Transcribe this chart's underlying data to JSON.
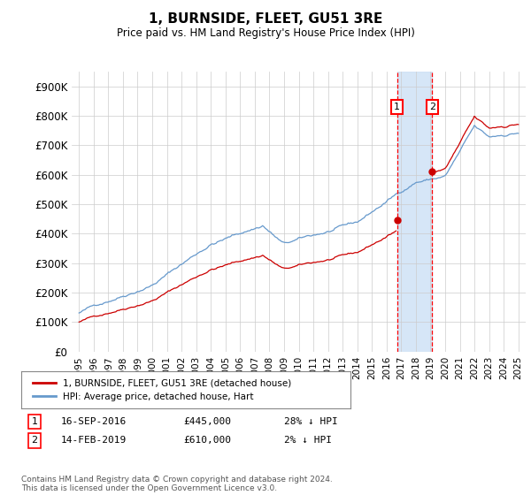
{
  "title": "1, BURNSIDE, FLEET, GU51 3RE",
  "subtitle": "Price paid vs. HM Land Registry's House Price Index (HPI)",
  "ylim": [
    0,
    950000
  ],
  "yticks": [
    0,
    100000,
    200000,
    300000,
    400000,
    500000,
    600000,
    700000,
    800000,
    900000
  ],
  "ytick_labels": [
    "£0",
    "£100K",
    "£200K",
    "£300K",
    "£400K",
    "£500K",
    "£600K",
    "£700K",
    "£800K",
    "£900K"
  ],
  "x_start_year": 1995,
  "x_end_year": 2025,
  "transaction1_date": 2016.71,
  "transaction1_price": 445000,
  "transaction1_label": "16-SEP-2016",
  "transaction1_amount": "£445,000",
  "transaction1_pct": "28% ↓ HPI",
  "transaction2_date": 2019.12,
  "transaction2_price": 610000,
  "transaction2_label": "14-FEB-2019",
  "transaction2_amount": "£610,000",
  "transaction2_pct": "2% ↓ HPI",
  "legend_line1": "1, BURNSIDE, FLEET, GU51 3RE (detached house)",
  "legend_line2": "HPI: Average price, detached house, Hart",
  "footer": "Contains HM Land Registry data © Crown copyright and database right 2024.\nThis data is licensed under the Open Government Licence v3.0.",
  "line_color_red": "#cc0000",
  "line_color_blue": "#6699cc",
  "shade_color": "#cce0f5",
  "background_color": "#ffffff",
  "grid_color": "#cccccc"
}
